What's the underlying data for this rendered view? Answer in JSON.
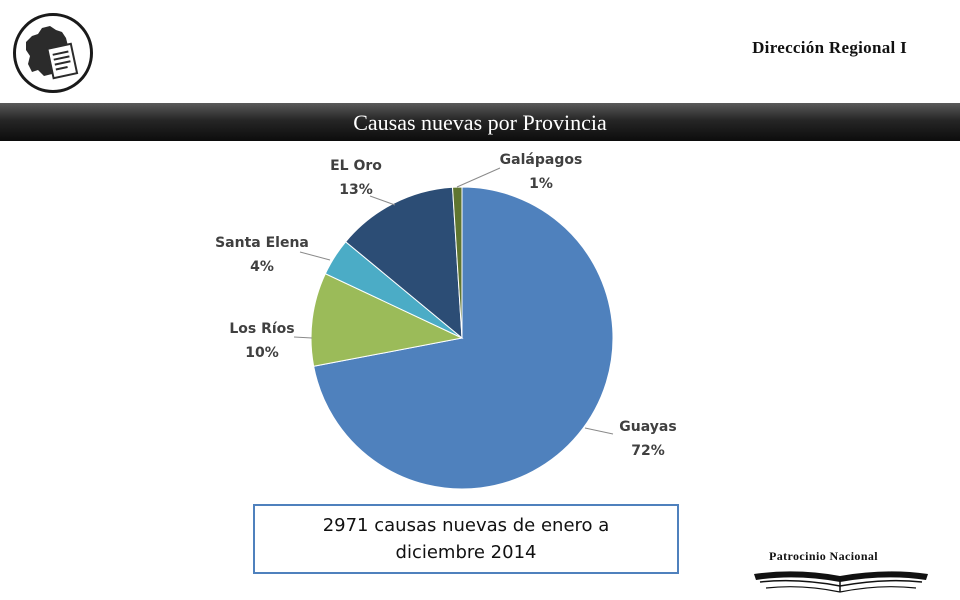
{
  "header": {
    "region_label": "Dirección Regional I",
    "slide_title": "Causas nuevas por Provincia",
    "logo_icon": "ecuador-map-document-icon"
  },
  "chart_data": {
    "type": "pie",
    "slices": [
      {
        "label": "Guayas",
        "value": 72,
        "display": "72%",
        "color": "#4f81bd"
      },
      {
        "label": "Los Ríos",
        "value": 10,
        "display": "10%",
        "color": "#9bbb59"
      },
      {
        "label": "Santa Elena",
        "value": 4,
        "display": "4%",
        "color": "#4bacc6"
      },
      {
        "label": "EL Oro",
        "value": 13,
        "display": "13%",
        "color": "#2c4d75"
      },
      {
        "label": "Galápagos",
        "value": 1,
        "display": "1%",
        "color": "#5f7530"
      }
    ],
    "start": "12 o'clock",
    "direction": "clockwise"
  },
  "summary": {
    "text": "2971 causas nuevas de enero a diciembre 2014",
    "border_color": "#4f81bd"
  },
  "footer": {
    "sponsor_label": "Patrocinio Nacional",
    "sponsor_icon": "open-book-icon"
  }
}
